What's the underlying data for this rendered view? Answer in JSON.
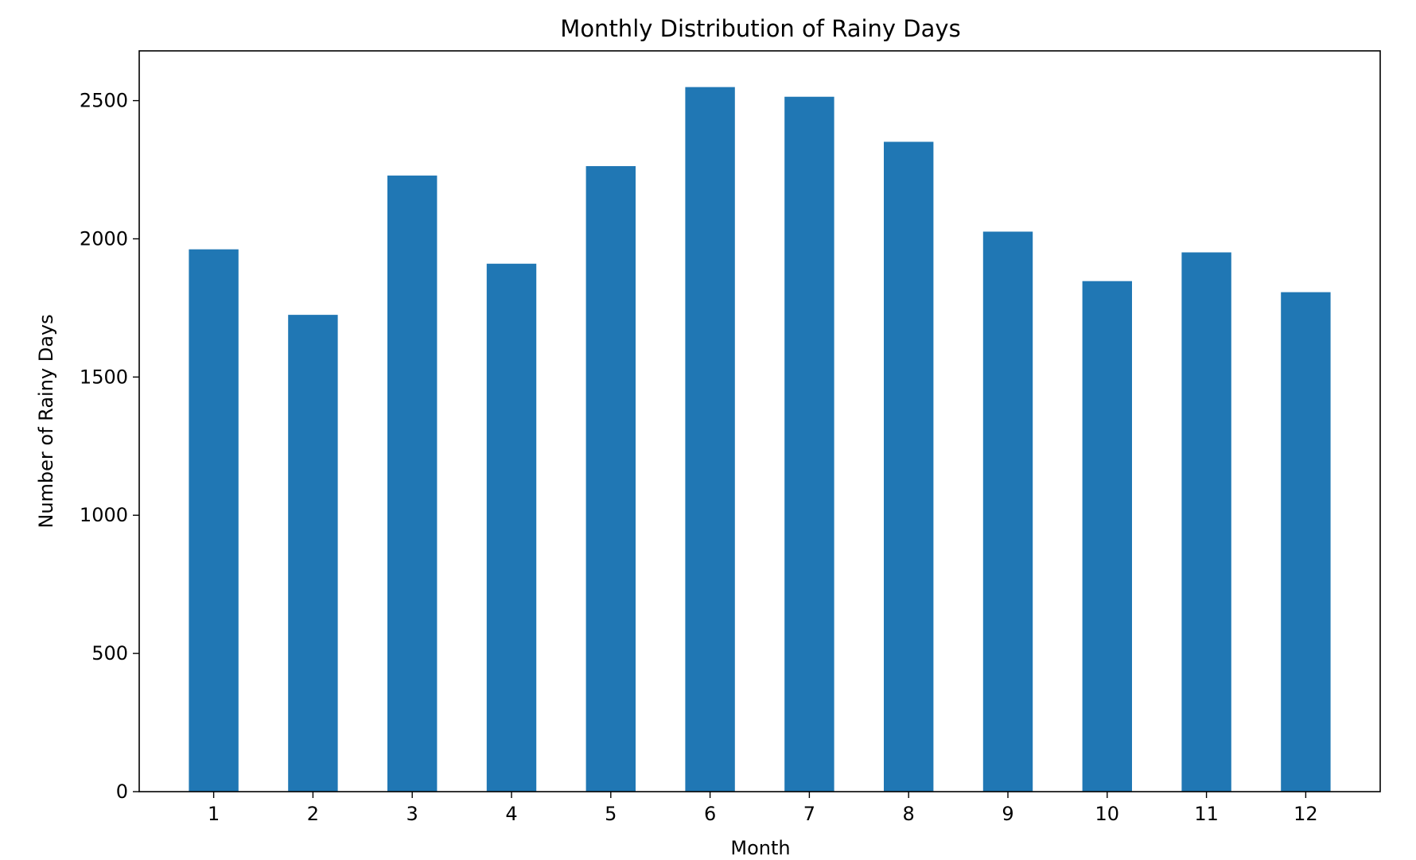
{
  "chart_data": {
    "type": "bar",
    "title": "Monthly Distribution of Rainy Days",
    "xlabel": "Month",
    "ylabel": "Number of Rainy Days",
    "categories": [
      "1",
      "2",
      "3",
      "4",
      "5",
      "6",
      "7",
      "8",
      "9",
      "10",
      "11",
      "12"
    ],
    "values": [
      1962,
      1725,
      2229,
      1910,
      2263,
      2549,
      2514,
      2351,
      2026,
      1847,
      1951,
      1807
    ],
    "ylim": [
      0,
      2680
    ],
    "yticks": [
      0,
      500,
      1000,
      1500,
      2000,
      2500
    ],
    "grid": false,
    "legend": "none",
    "bar_color": "#2077b4"
  }
}
